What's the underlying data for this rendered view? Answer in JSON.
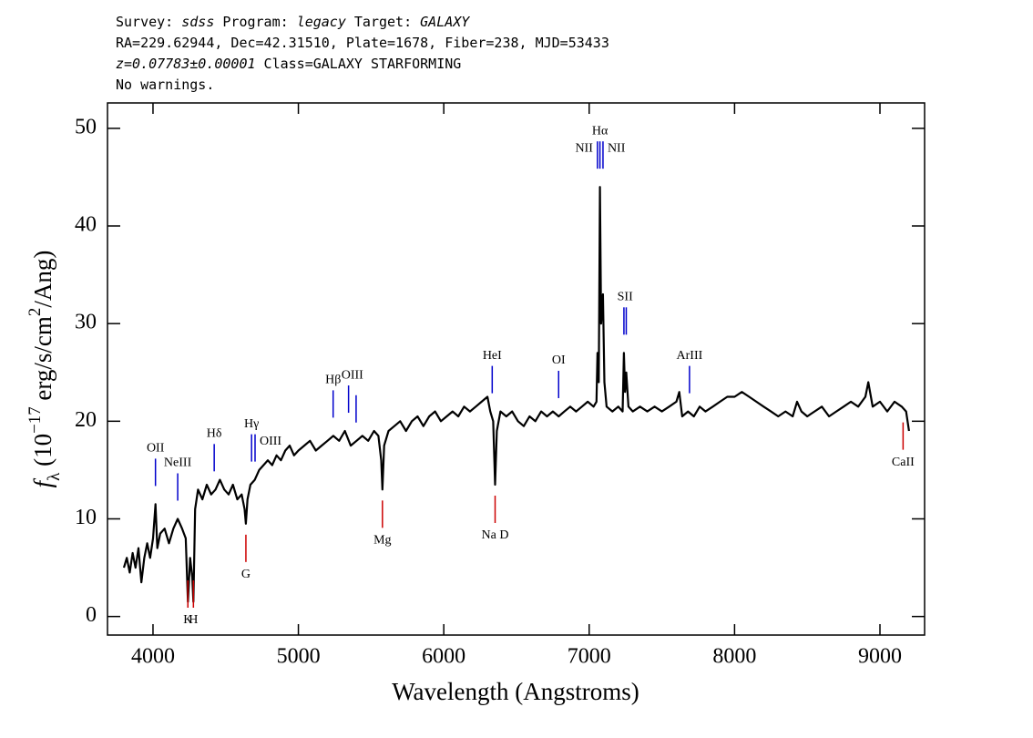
{
  "chart_data": {
    "type": "line",
    "title_lines": [
      [
        {
          "text": "Survey: ",
          "style": "normal"
        },
        {
          "text": "sdss",
          "style": "italic"
        },
        {
          "text": " Program: ",
          "style": "normal"
        },
        {
          "text": "legacy",
          "style": "italic"
        },
        {
          "text": " Target: ",
          "style": "normal"
        },
        {
          "text": "GALAXY",
          "style": "italic"
        }
      ],
      [
        {
          "text": "RA=229.62944, Dec=42.31510, Plate=1678, Fiber=238, MJD=53433",
          "style": "normal"
        }
      ],
      [
        {
          "text": "z=0.07783±0.00001",
          "style": "italic"
        },
        {
          "text": " Class=GALAXY STARFORMING",
          "style": "normal"
        }
      ],
      [
        {
          "text": "No warnings.",
          "style": "normal"
        }
      ]
    ],
    "xlabel": "Wavelength (Angstroms)",
    "ylabel": [
      {
        "text": "f",
        "style": "italic"
      },
      {
        "text": "λ",
        "style": "sub"
      },
      {
        "text": " (10",
        "style": "normal"
      },
      {
        "text": "−17",
        "style": "sup"
      },
      {
        "text": " erg/s/cm",
        "style": "normal"
      },
      {
        "text": "2",
        "style": "sup"
      },
      {
        "text": "/Ang)",
        "style": "normal"
      }
    ],
    "xlim": [
      3687,
      9307
    ],
    "ylim": [
      -1.9,
      52.6
    ],
    "xticks": [
      4000,
      5000,
      6000,
      7000,
      8000,
      9000
    ],
    "yticks": [
      0,
      10,
      20,
      30,
      40,
      50
    ],
    "x": [
      3800,
      3820,
      3840,
      3860,
      3880,
      3900,
      3920,
      3940,
      3960,
      3980,
      4000,
      4017,
      4030,
      4050,
      4080,
      4110,
      4140,
      4170,
      4200,
      4225,
      4240,
      4255,
      4270,
      4278,
      4290,
      4310,
      4340,
      4370,
      4400,
      4430,
      4460,
      4490,
      4520,
      4550,
      4580,
      4610,
      4630,
      4639,
      4650,
      4670,
      4700,
      4730,
      4760,
      4790,
      4820,
      4850,
      4880,
      4910,
      4940,
      4970,
      5000,
      5040,
      5080,
      5120,
      5160,
      5200,
      5240,
      5280,
      5320,
      5360,
      5400,
      5440,
      5480,
      5520,
      5550,
      5570,
      5578,
      5590,
      5620,
      5660,
      5700,
      5740,
      5780,
      5820,
      5860,
      5900,
      5940,
      5980,
      6020,
      6060,
      6100,
      6140,
      6180,
      6220,
      6260,
      6300,
      6320,
      6340,
      6353,
      6365,
      6390,
      6430,
      6470,
      6510,
      6550,
      6590,
      6630,
      6670,
      6710,
      6750,
      6790,
      6830,
      6870,
      6910,
      6950,
      6990,
      7030,
      7050,
      7057,
      7066,
      7074,
      7082,
      7095,
      7105,
      7120,
      7160,
      7200,
      7230,
      7239,
      7247,
      7255,
      7270,
      7300,
      7350,
      7400,
      7450,
      7500,
      7550,
      7600,
      7620,
      7640,
      7680,
      7720,
      7760,
      7800,
      7850,
      7900,
      7950,
      8000,
      8050,
      8100,
      8150,
      8200,
      8250,
      8300,
      8350,
      8400,
      8430,
      8460,
      8500,
      8550,
      8600,
      8650,
      8700,
      8750,
      8800,
      8850,
      8900,
      8920,
      8950,
      9000,
      9050,
      9100,
      9150,
      9180,
      9200
    ],
    "series": [
      {
        "color": "#000000",
        "values": [
          5,
          6,
          4.5,
          6.5,
          5,
          7,
          3.5,
          6,
          7.5,
          6,
          8,
          11.5,
          7,
          8.5,
          9,
          7.5,
          9,
          10,
          9,
          8,
          1.5,
          6,
          4,
          1.5,
          11,
          13,
          12,
          13.5,
          12.5,
          13,
          14,
          13,
          12.5,
          13.5,
          12,
          12.5,
          11,
          9.5,
          12,
          13.5,
          14,
          15,
          15.5,
          16,
          15.5,
          16.5,
          16,
          17,
          17.5,
          16.5,
          17,
          17.5,
          18,
          17,
          17.5,
          18,
          18.5,
          18,
          19,
          17.5,
          18,
          18.5,
          18,
          19,
          18.5,
          16,
          13,
          17.5,
          19,
          19.5,
          20,
          19,
          20,
          20.5,
          19.5,
          20.5,
          21,
          20,
          20.5,
          21,
          20.5,
          21.5,
          21,
          21.5,
          22,
          22.5,
          21,
          20,
          13.5,
          19,
          21,
          20.5,
          21,
          20,
          19.5,
          20.5,
          20,
          21,
          20.5,
          21,
          20.5,
          21,
          21.5,
          21,
          21.5,
          22,
          21.5,
          22,
          27,
          24,
          44,
          30,
          33,
          24,
          21.5,
          21,
          21.5,
          21,
          27,
          23,
          25,
          21.5,
          21,
          21.5,
          21,
          21.5,
          21,
          21.5,
          22,
          23,
          20.5,
          21,
          20.5,
          21.5,
          21,
          21.5,
          22,
          22.5,
          22.5,
          23,
          22.5,
          22,
          21.5,
          21,
          20.5,
          21,
          20.5,
          22,
          21,
          20.5,
          21,
          21.5,
          20.5,
          21,
          21.5,
          22,
          21.5,
          22.5,
          24,
          21.5,
          22,
          21,
          22,
          21.5,
          21,
          19
        ]
      }
    ],
    "line_marks": [
      {
        "label": "OII",
        "x": [
          4017
        ],
        "color": "#0000cc",
        "side": "above",
        "anchor": "middle"
      },
      {
        "label": "NeIII",
        "x": [
          4170
        ],
        "color": "#0000cc",
        "side": "above",
        "anchor": "middle"
      },
      {
        "label": "Hδ",
        "x": [
          4421
        ],
        "color": "#0000cc",
        "side": "above",
        "anchor": "middle"
      },
      {
        "label": "Hγ",
        "x": [
          4678
        ],
        "color": "#0000cc",
        "side": "above",
        "anchor": "middle"
      },
      {
        "label": "OIII",
        "x": [
          4702
        ],
        "color": "#0000cc",
        "side": "above",
        "anchor": "start"
      },
      {
        "label": "Hβ",
        "x": [
          5239
        ],
        "color": "#0000cc",
        "side": "above",
        "anchor": "middle"
      },
      {
        "label": "OIII",
        "x": [
          5345,
          5397
        ],
        "color": "#0000cc",
        "side": "above",
        "anchor": "middle"
      },
      {
        "label": "HeI",
        "x": [
          6333
        ],
        "color": "#0000cc",
        "side": "above",
        "anchor": "middle"
      },
      {
        "label": "OI",
        "x": [
          6790
        ],
        "color": "#0000cc",
        "side": "above",
        "anchor": "middle"
      },
      {
        "label": "NII",
        "x": [
          7057
        ],
        "color": "#0000cc",
        "side": "above",
        "anchor": "end"
      },
      {
        "label": "Hα",
        "x": [
          7074
        ],
        "color": "#0000cc",
        "side": "above",
        "anchor": "middle"
      },
      {
        "label": "NII",
        "x": [
          7095
        ],
        "color": "#0000cc",
        "side": "above",
        "anchor": "start"
      },
      {
        "label": "SII",
        "x": [
          7239,
          7255
        ],
        "color": "#0000cc",
        "side": "above",
        "anchor": "middle"
      },
      {
        "label": "ArIII",
        "x": [
          7690
        ],
        "color": "#0000cc",
        "side": "above",
        "anchor": "middle"
      },
      {
        "label": "K",
        "x": [
          4240
        ],
        "color": "#cc0000",
        "side": "below",
        "anchor": "middle"
      },
      {
        "label": "H",
        "x": [
          4278
        ],
        "color": "#cc0000",
        "side": "below",
        "anchor": "middle"
      },
      {
        "label": "G",
        "x": [
          4639
        ],
        "color": "#cc0000",
        "side": "below",
        "anchor": "middle"
      },
      {
        "label": "Mg",
        "x": [
          5578
        ],
        "color": "#cc0000",
        "side": "below",
        "anchor": "middle"
      },
      {
        "label": "Na D",
        "x": [
          6353
        ],
        "color": "#cc0000",
        "side": "below",
        "anchor": "middle"
      },
      {
        "label": "CaII",
        "x": [
          9159
        ],
        "color": "#cc0000",
        "side": "below",
        "anchor": "middle"
      }
    ]
  }
}
